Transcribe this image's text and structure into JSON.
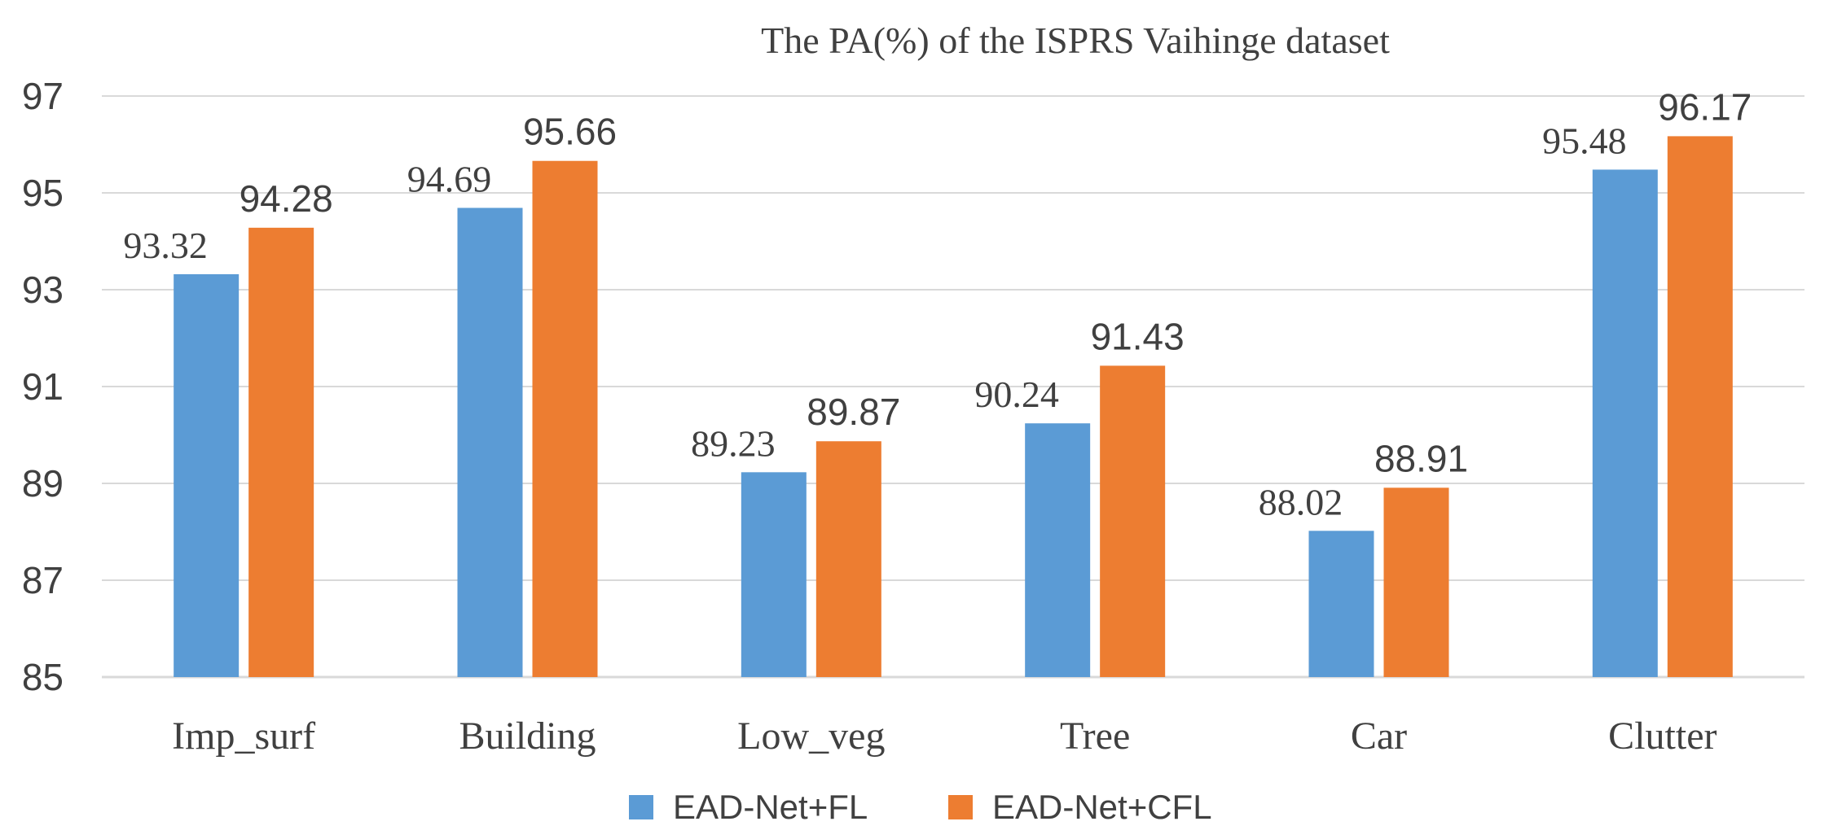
{
  "chart_data": {
    "type": "bar",
    "title": "The PA(%) of the ISPRS Vaihinge dataset",
    "categories": [
      "Imp_surf",
      "Building",
      "Low_veg",
      "Tree",
      "Car",
      "Clutter"
    ],
    "series": [
      {
        "name": "EAD-Net+FL",
        "color": "#5b9bd5",
        "values": [
          93.32,
          94.69,
          89.23,
          90.24,
          88.02,
          95.48
        ],
        "labels": [
          "93.32",
          "94.69",
          "89.23",
          "90.24",
          "88.02",
          "95.48"
        ]
      },
      {
        "name": "EAD-Net+CFL",
        "color": "#ed7d31",
        "values": [
          94.28,
          95.66,
          89.87,
          91.43,
          88.91,
          96.17
        ],
        "labels": [
          "94.28",
          "95.66",
          "89.87",
          "91.43",
          "88.91",
          "96.17"
        ]
      }
    ],
    "ylim": [
      85,
      97
    ],
    "yticks": [
      "85",
      "87",
      "89",
      "91",
      "93",
      "95",
      "97"
    ],
    "grid": true,
    "legend": "bottom",
    "xlabel": "",
    "ylabel": ""
  }
}
